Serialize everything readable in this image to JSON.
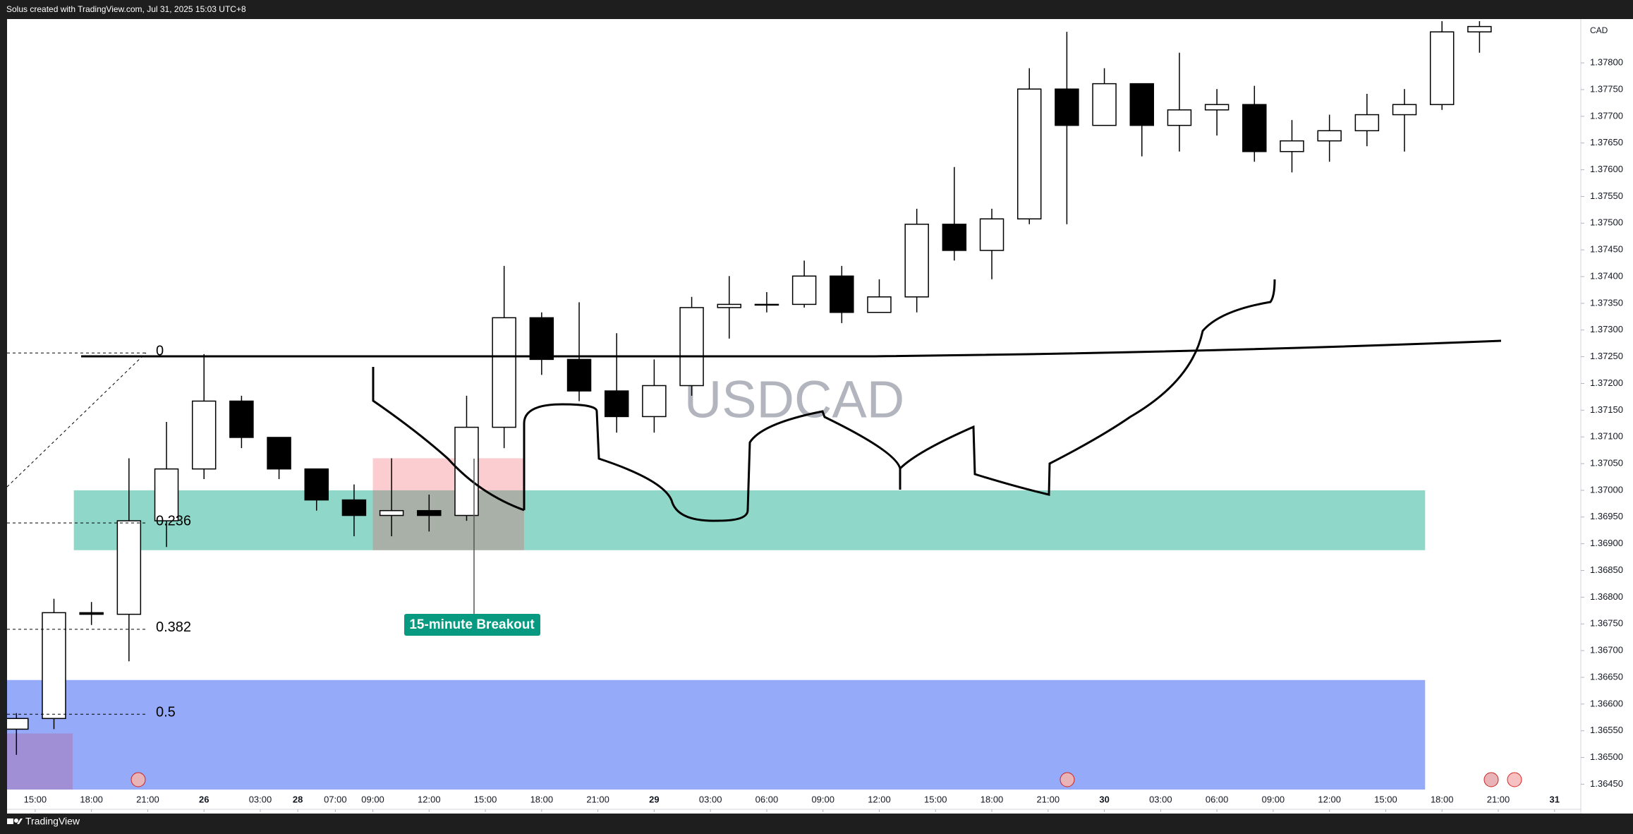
{
  "header": {
    "text": "Solus created with TradingView.com, Jul 31, 2025 15:03 UTC+8"
  },
  "footer": {
    "brand": "TradingView"
  },
  "chart_data": {
    "type": "candlestick",
    "watermark": "USDCAD",
    "currency": "CAD",
    "up_color": "#ffffff",
    "down_color": "#000000",
    "x": [
      -1,
      1,
      3,
      5,
      7,
      9,
      11,
      13,
      15,
      17,
      19,
      21,
      23,
      25,
      27,
      29,
      31,
      33,
      35,
      37,
      39,
      41,
      43,
      45,
      47,
      49,
      51,
      53,
      55,
      57,
      59,
      61,
      63,
      65,
      67,
      69,
      71,
      73,
      75,
      77
    ],
    "open": [
      1.36553,
      1.36573,
      1.36771,
      1.36768,
      1.36943,
      1.3704,
      1.37167,
      1.37099,
      1.3704,
      1.36982,
      1.36953,
      1.36962,
      1.36953,
      1.37118,
      1.37323,
      1.37245,
      1.37186,
      1.37138,
      1.37196,
      1.37342,
      1.37348,
      1.37348,
      1.37401,
      1.37333,
      1.37362,
      1.37498,
      1.37449,
      1.37508,
      1.37751,
      1.37683,
      1.37761,
      1.37683,
      1.37712,
      1.37722,
      1.37634,
      1.37654,
      1.37673,
      1.37703,
      1.37722,
      1.37858
    ],
    "high": [
      1.36583,
      1.36797,
      1.36791,
      1.3706,
      1.37128,
      1.37255,
      1.37177,
      1.37099,
      1.3704,
      1.37011,
      1.3706,
      1.36992,
      1.37177,
      1.3742,
      1.37333,
      1.37352,
      1.37294,
      1.37245,
      1.37362,
      1.37401,
      1.37371,
      1.3743,
      1.3742,
      1.37395,
      1.37527,
      1.37605,
      1.37527,
      1.3779,
      1.37858,
      1.3779,
      1.37761,
      1.37819,
      1.37751,
      1.37757,
      1.37693,
      1.37703,
      1.37742,
      1.37751,
      1.37878,
      1.37878
    ],
    "low": [
      1.36505,
      1.36553,
      1.36748,
      1.3668,
      1.36894,
      1.37021,
      1.37079,
      1.37021,
      1.36962,
      1.36914,
      1.36914,
      1.36923,
      1.36943,
      1.37079,
      1.37216,
      1.37167,
      1.37108,
      1.37108,
      1.37177,
      1.37284,
      1.37333,
      1.37342,
      1.37313,
      1.37333,
      1.37333,
      1.3743,
      1.37395,
      1.37498,
      1.37498,
      1.37683,
      1.37625,
      1.37634,
      1.37664,
      1.37615,
      1.37595,
      1.37615,
      1.37644,
      1.37634,
      1.37712,
      1.37819
    ],
    "close": [
      1.36573,
      1.36771,
      1.36768,
      1.36943,
      1.3704,
      1.37167,
      1.37099,
      1.3704,
      1.36982,
      1.36953,
      1.36962,
      1.36953,
      1.37118,
      1.37323,
      1.37245,
      1.37186,
      1.37138,
      1.37196,
      1.37342,
      1.37348,
      1.37348,
      1.37401,
      1.37333,
      1.37362,
      1.37498,
      1.37449,
      1.37508,
      1.37751,
      1.37683,
      1.37761,
      1.37683,
      1.37712,
      1.37722,
      1.37634,
      1.37654,
      1.37673,
      1.37703,
      1.37722,
      1.37858,
      1.37868
    ],
    "xlim": [
      -1.5,
      82.4
    ],
    "ylim": [
      1.3644,
      1.37882
    ],
    "xticks": [
      {
        "value": 0,
        "label": "15:00"
      },
      {
        "value": 3,
        "label": "18:00"
      },
      {
        "value": 6,
        "label": "21:00"
      },
      {
        "value": 9,
        "label": "26"
      },
      {
        "value": 12,
        "label": "03:00"
      },
      {
        "value": 14,
        "label": "28"
      },
      {
        "value": 16,
        "label": "07:00"
      },
      {
        "value": 18,
        "label": "09:00"
      },
      {
        "value": 21,
        "label": "12:00"
      },
      {
        "value": 24,
        "label": "15:00"
      },
      {
        "value": 27,
        "label": "18:00"
      },
      {
        "value": 30,
        "label": "21:00"
      },
      {
        "value": 33,
        "label": "29"
      },
      {
        "value": 36,
        "label": "03:00"
      },
      {
        "value": 39,
        "label": "06:00"
      },
      {
        "value": 42,
        "label": "09:00"
      },
      {
        "value": 45,
        "label": "12:00"
      },
      {
        "value": 48,
        "label": "15:00"
      },
      {
        "value": 51,
        "label": "18:00"
      },
      {
        "value": 54,
        "label": "21:00"
      },
      {
        "value": 57,
        "label": "30"
      },
      {
        "value": 60,
        "label": "03:00"
      },
      {
        "value": 63,
        "label": "06:00"
      },
      {
        "value": 66,
        "label": "09:00"
      },
      {
        "value": 69,
        "label": "12:00"
      },
      {
        "value": 72,
        "label": "15:00"
      },
      {
        "value": 75,
        "label": "18:00"
      },
      {
        "value": 78,
        "label": "21:00"
      },
      {
        "value": 81,
        "label": "31"
      }
    ],
    "yticks": [
      {
        "value": 1.3645,
        "label": "1.36450"
      },
      {
        "value": 1.365,
        "label": "1.36500"
      },
      {
        "value": 1.3655,
        "label": "1.36550"
      },
      {
        "value": 1.366,
        "label": "1.36600"
      },
      {
        "value": 1.3665,
        "label": "1.36650"
      },
      {
        "value": 1.367,
        "label": "1.36700"
      },
      {
        "value": 1.3675,
        "label": "1.36750"
      },
      {
        "value": 1.368,
        "label": "1.36800"
      },
      {
        "value": 1.3685,
        "label": "1.36850"
      },
      {
        "value": 1.369,
        "label": "1.36900"
      },
      {
        "value": 1.3695,
        "label": "1.36950"
      },
      {
        "value": 1.37,
        "label": "1.37000"
      },
      {
        "value": 1.3705,
        "label": "1.37050"
      },
      {
        "value": 1.371,
        "label": "1.37100"
      },
      {
        "value": 1.3715,
        "label": "1.37150"
      },
      {
        "value": 1.372,
        "label": "1.37200"
      },
      {
        "value": 1.3725,
        "label": "1.37250"
      },
      {
        "value": 1.373,
        "label": "1.37300"
      },
      {
        "value": 1.3735,
        "label": "1.37350"
      },
      {
        "value": 1.374,
        "label": "1.37400"
      },
      {
        "value": 1.3745,
        "label": "1.37450"
      },
      {
        "value": 1.375,
        "label": "1.37500"
      },
      {
        "value": 1.3755,
        "label": "1.37550"
      },
      {
        "value": 1.376,
        "label": "1.37600"
      },
      {
        "value": 1.3765,
        "label": "1.37650"
      },
      {
        "value": 1.377,
        "label": "1.37700"
      },
      {
        "value": 1.3775,
        "label": "1.37750"
      },
      {
        "value": 1.378,
        "label": "1.37800"
      }
    ],
    "fib_levels": [
      {
        "ratio": 0,
        "price": 1.37257
      },
      {
        "ratio": 0.236,
        "price": 1.36939
      },
      {
        "ratio": 0.382,
        "price": 1.3674
      },
      {
        "ratio": 0.5,
        "price": 1.36581
      }
    ],
    "zones": [
      {
        "color": "#95aaf9",
        "x": [
          -1.5,
          74.1
        ],
        "y": [
          1.3644,
          1.36645
        ]
      },
      {
        "color": "#a08fd4",
        "x": [
          -1.5,
          2
        ],
        "y": [
          1.3644,
          1.36545
        ]
      },
      {
        "color": "#8fd8c9",
        "x": [
          2.06,
          74.1
        ],
        "y": [
          1.36888,
          1.37
        ]
      },
      {
        "color": "#f2364540",
        "x": [
          18,
          26.06
        ],
        "y": [
          1.36888,
          1.3706
        ]
      }
    ],
    "annotation": "15-minute Breakout"
  }
}
